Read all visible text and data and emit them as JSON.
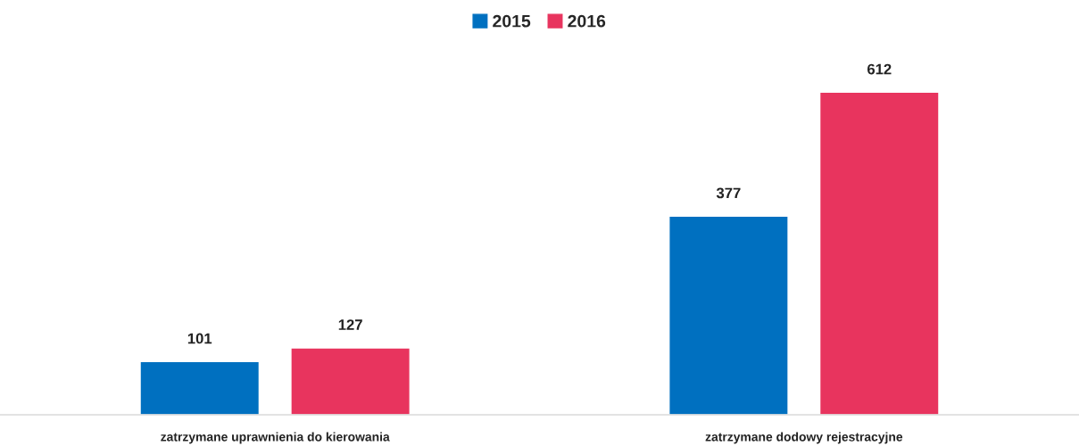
{
  "chart_data": {
    "type": "bar",
    "categories": [
      "zatrzymane uprawnienia do kierowania",
      "zatrzymane dodowy rejestracyjne"
    ],
    "series": [
      {
        "name": "2015",
        "color": "#0070c0",
        "values": [
          101,
          377
        ]
      },
      {
        "name": "2016",
        "color": "#e8345e",
        "values": [
          127,
          612
        ]
      }
    ],
    "data_labels": true,
    "legend": "top",
    "grid": false
  }
}
